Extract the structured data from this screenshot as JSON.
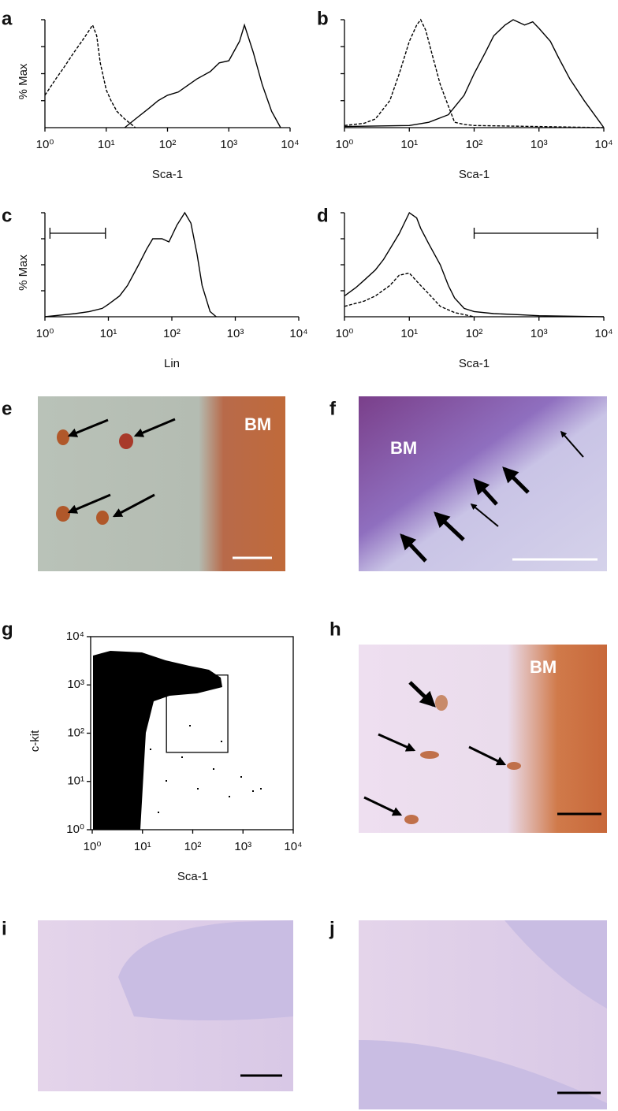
{
  "panel_labels": [
    "a",
    "b",
    "c",
    "d",
    "e",
    "f",
    "g",
    "h",
    "i",
    "j"
  ],
  "chart_data": [
    {
      "type": "line",
      "xlabel": "Sca-1",
      "ylabel": "% Max",
      "xlog": true,
      "xlim": [
        1,
        10000
      ],
      "xticks": [
        {
          "value": 1,
          "label": "10⁰"
        },
        {
          "value": 10,
          "label": "10¹"
        },
        {
          "value": 100,
          "label": "10²"
        },
        {
          "value": 1000,
          "label": "10³"
        },
        {
          "value": 10000,
          "label": "10⁴"
        }
      ],
      "ylim": [
        0,
        100
      ],
      "series": [
        {
          "dashed": true,
          "x": [
            1,
            1.5,
            2,
            3,
            4,
            5,
            6,
            7,
            8,
            10,
            12,
            15,
            20,
            30
          ],
          "values": [
            30,
            45,
            55,
            70,
            80,
            88,
            95,
            85,
            60,
            35,
            25,
            15,
            8,
            0
          ]
        },
        {
          "dashed": false,
          "x": [
            20,
            30,
            50,
            70,
            100,
            150,
            200,
            300,
            500,
            700,
            1000,
            1500,
            1800,
            2500,
            3500,
            5000,
            7000
          ],
          "values": [
            0,
            8,
            18,
            25,
            30,
            33,
            38,
            45,
            52,
            60,
            62,
            80,
            95,
            70,
            40,
            15,
            0
          ]
        }
      ]
    },
    {
      "type": "line",
      "xlabel": "Sca-1",
      "xlog": true,
      "xlim": [
        1,
        10000
      ],
      "xticks": [
        {
          "value": 1,
          "label": "10⁰"
        },
        {
          "value": 10,
          "label": "10¹"
        },
        {
          "value": 100,
          "label": "10²"
        },
        {
          "value": 1000,
          "label": "10³"
        },
        {
          "value": 10000,
          "label": "10⁴"
        }
      ],
      "ylim": [
        0,
        100
      ],
      "series": [
        {
          "dashed": true,
          "x": [
            1,
            2,
            3,
            5,
            7,
            10,
            13,
            15,
            18,
            22,
            30,
            40,
            50,
            70,
            100,
            1000,
            10000
          ],
          "values": [
            2,
            4,
            8,
            25,
            50,
            80,
            95,
            100,
            90,
            70,
            40,
            20,
            5,
            3,
            2,
            1,
            0
          ]
        },
        {
          "dashed": false,
          "x": [
            1,
            10,
            20,
            40,
            70,
            100,
            150,
            200,
            300,
            400,
            600,
            800,
            1000,
            1500,
            2000,
            3000,
            5000,
            10000
          ],
          "values": [
            1,
            2,
            5,
            12,
            30,
            50,
            70,
            85,
            95,
            100,
            95,
            98,
            92,
            80,
            65,
            45,
            25,
            0
          ]
        }
      ]
    },
    {
      "type": "line",
      "xlabel": "Lin",
      "ylabel": "% Max",
      "xlog": true,
      "xlim": [
        1,
        10000
      ],
      "xticks": [
        {
          "value": 1,
          "label": "10⁰"
        },
        {
          "value": 10,
          "label": "10¹"
        },
        {
          "value": 100,
          "label": "10²"
        },
        {
          "value": 1000,
          "label": "10³"
        },
        {
          "value": 10000,
          "label": "10⁴"
        }
      ],
      "ylim": [
        0,
        100
      ],
      "gate": [
        1.2,
        9
      ],
      "series": [
        {
          "dashed": false,
          "x": [
            1,
            2,
            3,
            5,
            8,
            10,
            15,
            20,
            30,
            40,
            50,
            70,
            90,
            120,
            160,
            200,
            250,
            300,
            400,
            500
          ],
          "values": [
            0,
            2,
            3,
            5,
            8,
            12,
            20,
            30,
            50,
            65,
            75,
            75,
            72,
            88,
            100,
            90,
            60,
            30,
            5,
            0
          ]
        }
      ]
    },
    {
      "type": "line",
      "xlabel": "Sca-1",
      "xlog": true,
      "xlim": [
        1,
        10000
      ],
      "xticks": [
        {
          "value": 1,
          "label": "10⁰"
        },
        {
          "value": 10,
          "label": "10¹"
        },
        {
          "value": 100,
          "label": "10²"
        },
        {
          "value": 1000,
          "label": "10³"
        },
        {
          "value": 10000,
          "label": "10⁴"
        }
      ],
      "ylim": [
        0,
        100
      ],
      "gate": [
        100,
        8000
      ],
      "series": [
        {
          "dashed": false,
          "x": [
            1,
            1.5,
            2,
            3,
            4,
            5,
            7,
            10,
            13,
            15,
            20,
            30,
            40,
            50,
            70,
            100,
            200,
            500,
            1000,
            10000
          ],
          "values": [
            20,
            28,
            35,
            45,
            55,
            65,
            80,
            100,
            95,
            85,
            70,
            50,
            30,
            18,
            8,
            5,
            3,
            2,
            1,
            0
          ]
        },
        {
          "dashed": true,
          "x": [
            1,
            2,
            3,
            5,
            7,
            10,
            15,
            20,
            30,
            50,
            100
          ],
          "values": [
            10,
            15,
            20,
            30,
            40,
            42,
            30,
            22,
            10,
            4,
            0
          ]
        }
      ]
    },
    {
      "type": "scatter",
      "xlabel": "Sca-1",
      "ylabel": "c-kit",
      "xlog": true,
      "ylog": true,
      "xlim": [
        1,
        10000
      ],
      "ylim": [
        1,
        10000
      ],
      "xticks": [
        {
          "value": 1,
          "label": "10⁰"
        },
        {
          "value": 10,
          "label": "10¹"
        },
        {
          "value": 100,
          "label": "10²"
        },
        {
          "value": 1000,
          "label": "10³"
        },
        {
          "value": 10000,
          "label": "10⁴"
        }
      ],
      "yticks": [
        {
          "value": 1,
          "label": "10⁰"
        },
        {
          "value": 10,
          "label": "10¹"
        },
        {
          "value": 100,
          "label": "10²"
        },
        {
          "value": 1000,
          "label": "10³"
        },
        {
          "value": 10000,
          "label": "10⁴"
        }
      ],
      "gate": {
        "x": [
          30,
          500
        ],
        "y": [
          40,
          1600
        ]
      }
    }
  ],
  "micrographs": [
    {
      "label": "BM"
    },
    {
      "label": "BM"
    },
    {
      "label": "BM"
    }
  ]
}
